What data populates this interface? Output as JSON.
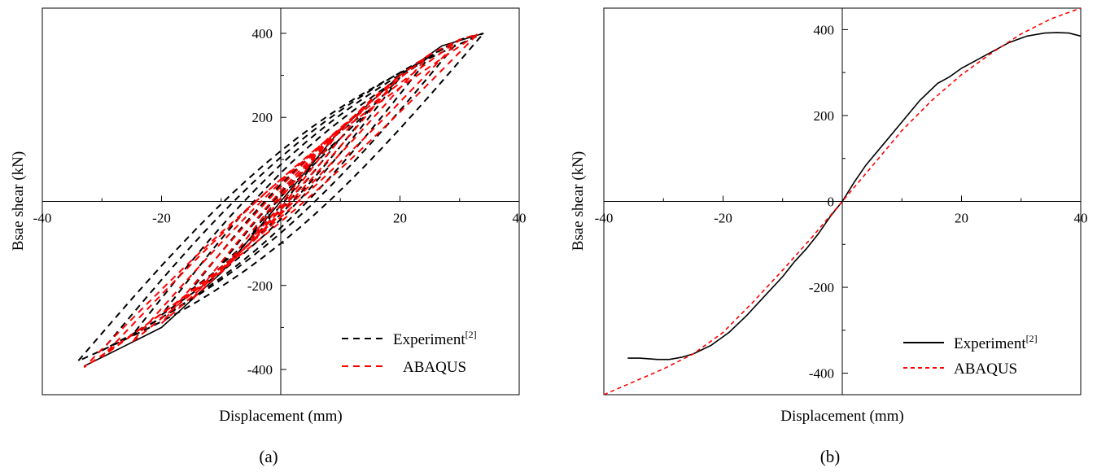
{
  "chart_data": [
    {
      "type": "line",
      "panel_label": "(a)",
      "xlabel": "Displacement (mm)",
      "ylabel": "Bsae shear (kN)",
      "xlim": [
        -40,
        40
      ],
      "ylim": [
        -460,
        460
      ],
      "xticks": [
        -40,
        -20,
        0,
        20,
        40
      ],
      "xtick_labels": [
        "-40",
        "-20",
        "0",
        "20",
        "40"
      ],
      "yticks": [
        -400,
        -200,
        200,
        400
      ],
      "ytick_labels": [
        "-400",
        "-200",
        "200",
        "400"
      ],
      "grid": false,
      "legend_position": "bottom-right",
      "legend": [
        {
          "label": "Experiment",
          "superscript": "[2]",
          "color": "#000000",
          "dash": "dashed"
        },
        {
          "label": "ABAQUS",
          "superscript": "",
          "color": "#ff0000",
          "dash": "dashed"
        }
      ],
      "series": [
        {
          "name": "Experiment",
          "color": "#000000",
          "style": "dashed",
          "cycles": [
            {
              "amp": 5,
              "pos_peak": 80,
              "neg_peak": -80,
              "offset": 10
            },
            {
              "amp": 10,
              "pos_peak": 150,
              "neg_peak": -150,
              "offset": 20
            },
            {
              "amp": 15,
              "pos_peak": 220,
              "neg_peak": -210,
              "offset": 35
            },
            {
              "amp": 20,
              "pos_peak": 295,
              "neg_peak": -270,
              "offset": 55
            },
            {
              "amp": 25,
              "pos_peak": 345,
              "neg_peak": -320,
              "offset": 75
            },
            {
              "amp": 30,
              "pos_peak": 385,
              "neg_peak": -355,
              "offset": 90
            },
            {
              "amp": 34,
              "pos_peak": 400,
              "neg_peak": -380,
              "offset": 110
            }
          ],
          "envelope": {
            "x": [
              -33,
              -27,
              -20,
              -10,
              0,
              10,
              20,
              27,
              34
            ],
            "y": [
              -392,
              -350,
              -300,
              -170,
              0,
              170,
              300,
              370,
              400
            ]
          }
        },
        {
          "name": "ABAQUS",
          "color": "#ff0000",
          "style": "dashed",
          "cycles": [
            {
              "amp": 5,
              "pos_peak": 90,
              "neg_peak": -90,
              "offset": 8
            },
            {
              "amp": 10,
              "pos_peak": 170,
              "neg_peak": -170,
              "offset": 15
            },
            {
              "amp": 15,
              "pos_peak": 240,
              "neg_peak": -235,
              "offset": 22
            },
            {
              "amp": 20,
              "pos_peak": 300,
              "neg_peak": -290,
              "offset": 30
            },
            {
              "amp": 25,
              "pos_peak": 350,
              "neg_peak": -335,
              "offset": 38
            },
            {
              "amp": 30,
              "pos_peak": 385,
              "neg_peak": -370,
              "offset": 45
            },
            {
              "amp": 33,
              "pos_peak": 398,
              "neg_peak": -395,
              "offset": 50
            }
          ]
        }
      ]
    },
    {
      "type": "line",
      "panel_label": "(b)",
      "xlabel": "Displacement (mm)",
      "ylabel": "Bsae shear (kN)",
      "xlim": [
        -40,
        40
      ],
      "ylim": [
        -450,
        450
      ],
      "xticks": [
        -40,
        -20,
        0,
        20,
        40
      ],
      "xtick_labels": [
        "-40",
        "-20",
        "0",
        "20",
        "40"
      ],
      "yticks": [
        -400,
        -200,
        0,
        200,
        400
      ],
      "ytick_labels": [
        "-400",
        "-200",
        "0",
        "200",
        "400"
      ],
      "grid": false,
      "legend_position": "bottom-right",
      "legend": [
        {
          "label": "Experiment",
          "superscript": "[2]",
          "color": "#000000",
          "dash": "solid"
        },
        {
          "label": "ABAQUS",
          "superscript": "",
          "color": "#ff0000",
          "dash": "dashed"
        }
      ],
      "series": [
        {
          "name": "Experiment",
          "color": "#000000",
          "style": "solid",
          "x": [
            -36,
            -34,
            -31,
            -29,
            -27,
            -25,
            -22,
            -19,
            -16,
            -13,
            -10,
            -8,
            -6,
            -4,
            -2,
            0,
            2,
            4,
            7,
            10,
            13,
            16,
            18,
            20,
            24,
            28,
            31,
            34,
            36,
            38,
            40
          ],
          "y": [
            -365,
            -365,
            -368,
            -368,
            -363,
            -355,
            -335,
            -305,
            -265,
            -220,
            -175,
            -140,
            -110,
            -75,
            -35,
            0,
            45,
            85,
            135,
            185,
            235,
            275,
            290,
            310,
            340,
            370,
            385,
            392,
            393,
            392,
            385
          ]
        },
        {
          "name": "ABAQUS",
          "color": "#ff0000",
          "style": "dashed",
          "x": [
            -40,
            -35,
            -30,
            -25,
            -20,
            -15,
            -10,
            -5,
            0,
            5,
            10,
            15,
            20,
            25,
            30,
            35,
            40
          ],
          "y": [
            -450,
            -420,
            -390,
            -355,
            -305,
            -235,
            -160,
            -82,
            0,
            82,
            165,
            235,
            295,
            345,
            390,
            425,
            450
          ]
        }
      ]
    }
  ]
}
